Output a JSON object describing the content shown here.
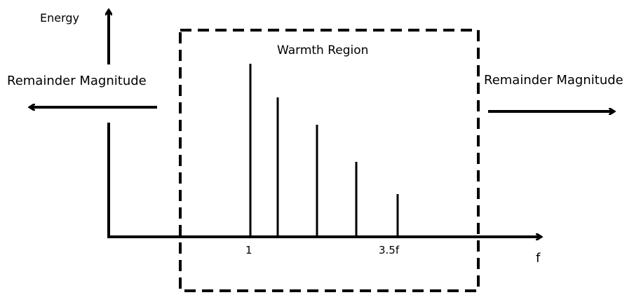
{
  "diagram": {
    "y_axis_label": "Energy",
    "x_axis_label": "f",
    "region_title": "Warmth Region",
    "left_arrow_label": "Remainder Magnitude",
    "right_arrow_label": "Remainder Magnitude",
    "x_ticks": [
      "1",
      "3.5f"
    ],
    "harmonic_bar_count": 5,
    "line_color": "#000000",
    "background_color": "#ffffff"
  }
}
